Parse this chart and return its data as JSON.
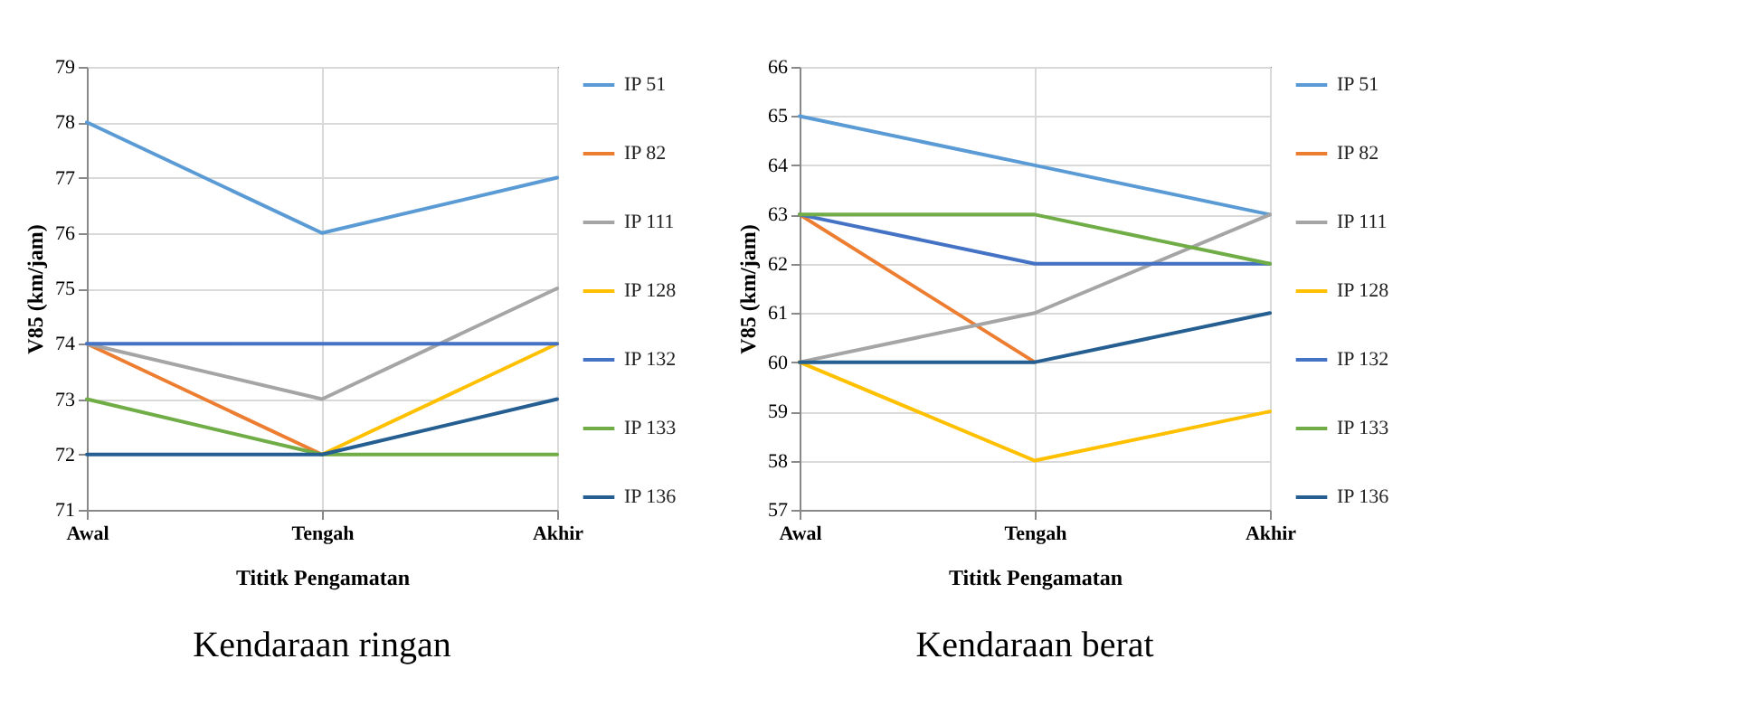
{
  "chart_data": [
    {
      "type": "line",
      "title": "Kendaraan ringan",
      "xlabel": "Tititk Pengamatan",
      "ylabel": "V85 (km/jam)",
      "categories": [
        "Awal",
        "Tengah",
        "Akhir"
      ],
      "ylim": [
        71,
        79
      ],
      "yticks": [
        71,
        72,
        73,
        74,
        75,
        76,
        77,
        78,
        79
      ],
      "grid": true,
      "legend": "right",
      "series": [
        {
          "name": "IP 51",
          "color": "#5b9bd5",
          "values": [
            78,
            76,
            77
          ]
        },
        {
          "name": "IP 82",
          "color": "#ed7d31",
          "values": [
            74,
            72,
            null
          ]
        },
        {
          "name": "IP 111",
          "color": "#a5a5a5",
          "values": [
            74,
            73,
            75
          ]
        },
        {
          "name": "IP 128",
          "color": "#ffc000",
          "values": [
            null,
            72,
            74
          ]
        },
        {
          "name": "IP 132",
          "color": "#4472c4",
          "values": [
            74,
            74,
            74
          ]
        },
        {
          "name": "IP 133",
          "color": "#70ad47",
          "values": [
            73,
            72,
            72
          ]
        },
        {
          "name": "IP 136",
          "color": "#255e91",
          "values": [
            72,
            72,
            73
          ]
        }
      ]
    },
    {
      "type": "line",
      "title": "Kendaraan berat",
      "xlabel": "Tititk Pengamatan",
      "ylabel": "V85 (km/jam)",
      "categories": [
        "Awal",
        "Tengah",
        "Akhir"
      ],
      "ylim": [
        57,
        66
      ],
      "yticks": [
        57,
        58,
        59,
        60,
        61,
        62,
        63,
        64,
        65,
        66
      ],
      "grid": true,
      "legend": "right",
      "series": [
        {
          "name": "IP 51",
          "color": "#5b9bd5",
          "values": [
            65,
            64,
            63
          ]
        },
        {
          "name": "IP 82",
          "color": "#ed7d31",
          "values": [
            63,
            60,
            null
          ]
        },
        {
          "name": "IP 111",
          "color": "#a5a5a5",
          "values": [
            60,
            61,
            63
          ]
        },
        {
          "name": "IP 128",
          "color": "#ffc000",
          "values": [
            60,
            58,
            59
          ]
        },
        {
          "name": "IP 132",
          "color": "#4472c4",
          "values": [
            63,
            62,
            62
          ]
        },
        {
          "name": "IP 133",
          "color": "#70ad47",
          "values": [
            63,
            63,
            62
          ]
        },
        {
          "name": "IP 136",
          "color": "#255e91",
          "values": [
            60,
            60,
            61
          ]
        }
      ]
    }
  ]
}
